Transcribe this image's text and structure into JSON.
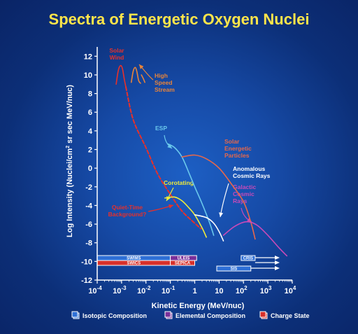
{
  "chart_data": {
    "type": "line",
    "title": "Spectra of Energetic Oxygen Nuclei",
    "xlabel": "Kinetic Energy (MeV/nuc)",
    "ylabel": "Log Intensity (Nuclei/cm² sr sec MeV/nuc)",
    "x_scale": "log",
    "xlim": [
      0.0001,
      10000
    ],
    "ylim": [
      -12,
      13
    ],
    "x_ticks": [
      {
        "value": 0.0001,
        "base": "10",
        "exp": "-4"
      },
      {
        "value": 0.001,
        "base": "10",
        "exp": "-3"
      },
      {
        "value": 0.01,
        "base": "10",
        "exp": "-2"
      },
      {
        "value": 0.1,
        "base": "10",
        "exp": "-1"
      },
      {
        "value": 1,
        "base": "1",
        "exp": ""
      },
      {
        "value": 10,
        "base": "10",
        "exp": ""
      },
      {
        "value": 100,
        "base": "10",
        "exp": "2"
      },
      {
        "value": 1000,
        "base": "10",
        "exp": "3"
      },
      {
        "value": 10000,
        "base": "10",
        "exp": "4"
      }
    ],
    "y_ticks": [
      12,
      10,
      8,
      6,
      4,
      2,
      0,
      -2,
      -4,
      -6,
      -8,
      -10,
      -12
    ],
    "series": [
      {
        "name": "Solar Wind",
        "color": "#e8302a",
        "dash": false,
        "points": [
          [
            0.0006,
            9.0
          ],
          [
            0.0007,
            10.2
          ],
          [
            0.0008,
            10.8
          ],
          [
            0.00095,
            11.0
          ],
          [
            0.0011,
            10.6
          ],
          [
            0.0013,
            9.5
          ],
          [
            0.0015,
            8.7
          ]
        ]
      },
      {
        "name": "Quiet-Time Background?",
        "color": "#e8302a",
        "dash": true,
        "points": [
          [
            0.0015,
            8.7
          ],
          [
            0.003,
            5.2
          ],
          [
            0.01,
            2.2
          ],
          [
            0.03,
            -0.6
          ],
          [
            0.1,
            -2.8
          ],
          [
            0.3,
            -4.6
          ],
          [
            1,
            -5.9
          ],
          [
            1.8,
            -6.5
          ]
        ]
      },
      {
        "name": "High Speed Stream",
        "color": "#e8843a",
        "dash": false,
        "points": [
          [
            0.0025,
            9.2
          ],
          [
            0.003,
            10.4
          ],
          [
            0.0036,
            10.8
          ],
          [
            0.0042,
            10.4
          ],
          [
            0.005,
            9.4
          ],
          [
            0.006,
            9.1
          ]
        ]
      },
      {
        "name": "High Speed Stream",
        "color": "#e8843a",
        "dash": false,
        "points": [
          [
            0.0065,
            10.0
          ],
          [
            0.0078,
            9.6
          ],
          [
            0.009,
            9.2
          ]
        ]
      },
      {
        "name": "ESP",
        "color": "#6ac8ec",
        "dash": false,
        "points": [
          [
            0.08,
            2.6
          ],
          [
            0.15,
            2.2
          ],
          [
            0.3,
            1.2
          ],
          [
            0.6,
            -0.6
          ],
          [
            1,
            -2.0
          ],
          [
            2,
            -3.8
          ],
          [
            4,
            -5.8
          ],
          [
            6,
            -7.2
          ]
        ]
      },
      {
        "name": "Solar Energetic Particles",
        "color": "#e8684a",
        "dash": false,
        "points": [
          [
            0.3,
            1.2
          ],
          [
            1,
            1.4
          ],
          [
            3,
            1.0
          ],
          [
            10,
            0.0
          ],
          [
            30,
            -1.6
          ],
          [
            100,
            -3.6
          ],
          [
            200,
            -5.8
          ],
          [
            300,
            -7.6
          ]
        ]
      },
      {
        "name": "Corotating",
        "color": "#f0ec3a",
        "dash": false,
        "points": [
          [
            0.06,
            -3.2
          ],
          [
            0.15,
            -3.1
          ],
          [
            0.3,
            -3.5
          ],
          [
            0.6,
            -4.3
          ],
          [
            1,
            -5.0
          ],
          [
            2,
            -6.4
          ],
          [
            3,
            -7.4
          ]
        ]
      },
      {
        "name": "Anomalous Cosmic Rays",
        "color": "#ffffff",
        "dash": false,
        "points": [
          [
            1,
            -5.0
          ],
          [
            3,
            -5.3
          ],
          [
            6,
            -5.9
          ],
          [
            10,
            -6.8
          ],
          [
            15,
            -7.8
          ]
        ]
      },
      {
        "name": "Galactic Cosmic Rays",
        "color": "#c84ab8",
        "dash": false,
        "points": [
          [
            15,
            -7.2
          ],
          [
            40,
            -6.3
          ],
          [
            100,
            -5.8
          ],
          [
            200,
            -5.8
          ],
          [
            400,
            -6.2
          ],
          [
            1000,
            -7.2
          ],
          [
            3000,
            -8.6
          ],
          [
            6000,
            -9.4
          ]
        ]
      }
    ],
    "annotations": [
      {
        "text": [
          "Solar",
          "Wind"
        ],
        "color": "#e8302a"
      },
      {
        "text": [
          "High",
          "Speed",
          "Stream"
        ],
        "color": "#e8843a"
      },
      {
        "text": [
          "ESP"
        ],
        "color": "#6ac8ec"
      },
      {
        "text": [
          "Solar",
          "Energetic",
          "Particles"
        ],
        "color": "#e8684a"
      },
      {
        "text": [
          "Anomalous",
          "Cosmic Rays"
        ],
        "color": "#ffffff"
      },
      {
        "text": [
          "Corotating"
        ],
        "color": "#f0ec3a"
      },
      {
        "text": [
          "Galactic",
          "Cosmic",
          "Rays"
        ],
        "color": "#c84ab8"
      },
      {
        "text": [
          "Quiet-Time",
          "Background?"
        ],
        "color": "#e8302a"
      }
    ],
    "instruments": [
      {
        "label": "SWIMS",
        "kind": "isotopic",
        "from": 0.0001,
        "to": 0.1,
        "row": 0
      },
      {
        "label": "SWICS",
        "kind": "charge",
        "from": 0.0001,
        "to": 0.1,
        "row": 1
      },
      {
        "label": "ULEIS",
        "kind": "elemental",
        "from": 0.1,
        "to": 1.2,
        "row": 0
      },
      {
        "label": "SEPICA",
        "kind": "charge",
        "from": 0.1,
        "to": 1.0,
        "row": 1
      },
      {
        "label": "SIS",
        "kind": "isotopic",
        "from": 8,
        "to": 200,
        "row": 2
      },
      {
        "label": "CRIS",
        "kind": "isotopic",
        "from": 80,
        "to": 300,
        "row": 0
      }
    ],
    "legend": [
      {
        "label": "Isotopic Composition",
        "kind": "isotopic"
      },
      {
        "label": "Elemental Composition",
        "kind": "elemental"
      },
      {
        "label": "Charge State",
        "kind": "charge"
      }
    ],
    "legend_position": "bottom",
    "grid": false,
    "colors": {
      "title": "#ffe54a",
      "isotopic": "#2e6fd6",
      "elemental": "#7a2f9a",
      "charge": "#d8302a"
    }
  }
}
